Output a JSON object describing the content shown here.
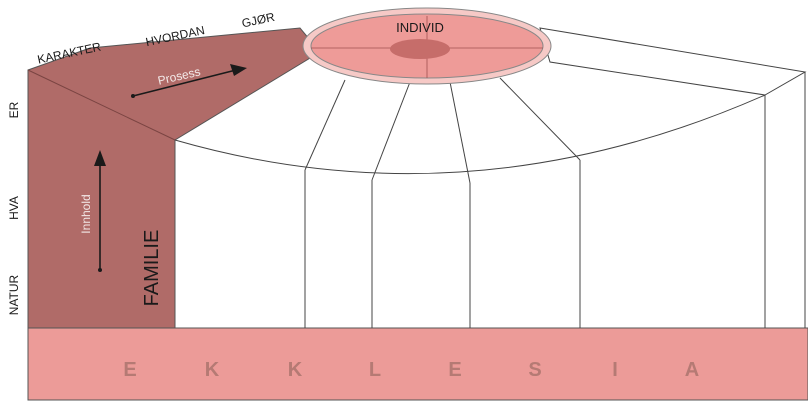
{
  "labels": {
    "individ": "INDIVID",
    "familie": "FAMILIE",
    "prosess": "Prosess",
    "innhold": "Innhold",
    "top_axis": [
      "KARAKTER",
      "HVORDAN",
      "GJØR"
    ],
    "left_axis": [
      "ER",
      "HVA",
      "NATUR"
    ]
  },
  "ekklesia_letters": [
    "E",
    "K",
    "K",
    "L",
    "E",
    "S",
    "I",
    "A"
  ],
  "colors": {
    "familie_fill": "#b06b68",
    "familie_top": "#b8726e",
    "ekklesia_fill": "#ec9b98",
    "ekklesia_letter": "#b57a74",
    "individ_outer": "#f6c9c6",
    "individ_inner": "#ee9b98",
    "individ_core": "#c66d6a",
    "line": "#444444",
    "text": "#1a1a1a"
  }
}
